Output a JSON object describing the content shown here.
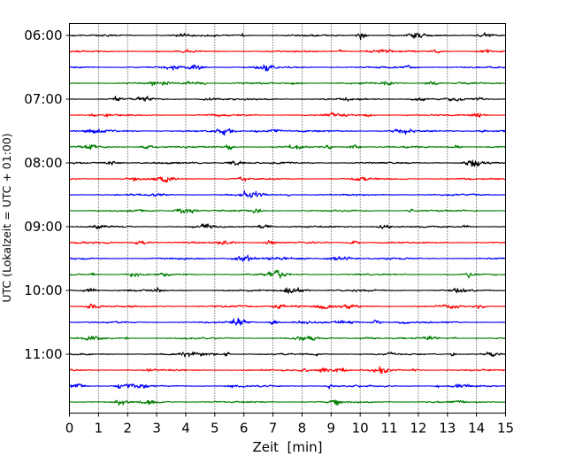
{
  "chart_data": {
    "type": "line",
    "title": "",
    "xlabel": "Zeit  [min]",
    "ylabel": "UTC (Lokalzeit = UTC + 01:00)",
    "xlim": [
      0,
      15
    ],
    "x_ticks": [
      "0",
      "1",
      "2",
      "3",
      "4",
      "5",
      "6",
      "7",
      "8",
      "9",
      "10",
      "11",
      "12",
      "13",
      "14",
      "15"
    ],
    "y_ticks": [
      "06:00",
      "07:00",
      "08:00",
      "09:00",
      "10:00",
      "11:00"
    ],
    "grid": "vertical dotted",
    "trace_interval_minutes": 15,
    "first_trace": "06:00",
    "trace_count": 24,
    "colors": [
      "#000000",
      "#ff0000",
      "#0000ff",
      "#007f00"
    ],
    "series": [
      {
        "start": "06:00",
        "color": "#000000"
      },
      {
        "start": "06:15",
        "color": "#ff0000"
      },
      {
        "start": "06:30",
        "color": "#0000ff"
      },
      {
        "start": "06:45",
        "color": "#007f00"
      },
      {
        "start": "07:00",
        "color": "#000000"
      },
      {
        "start": "07:15",
        "color": "#ff0000"
      },
      {
        "start": "07:30",
        "color": "#0000ff"
      },
      {
        "start": "07:45",
        "color": "#007f00"
      },
      {
        "start": "08:00",
        "color": "#000000"
      },
      {
        "start": "08:15",
        "color": "#ff0000"
      },
      {
        "start": "08:30",
        "color": "#0000ff"
      },
      {
        "start": "08:45",
        "color": "#007f00"
      },
      {
        "start": "09:00",
        "color": "#000000"
      },
      {
        "start": "09:15",
        "color": "#ff0000"
      },
      {
        "start": "09:30",
        "color": "#0000ff"
      },
      {
        "start": "09:45",
        "color": "#007f00"
      },
      {
        "start": "10:00",
        "color": "#000000"
      },
      {
        "start": "10:15",
        "color": "#ff0000"
      },
      {
        "start": "10:30",
        "color": "#0000ff"
      },
      {
        "start": "10:45",
        "color": "#007f00"
      },
      {
        "start": "11:00",
        "color": "#000000"
      },
      {
        "start": "11:15",
        "color": "#ff0000"
      },
      {
        "start": "11:30",
        "color": "#0000ff"
      },
      {
        "start": "11:45",
        "color": "#007f00"
      }
    ]
  }
}
